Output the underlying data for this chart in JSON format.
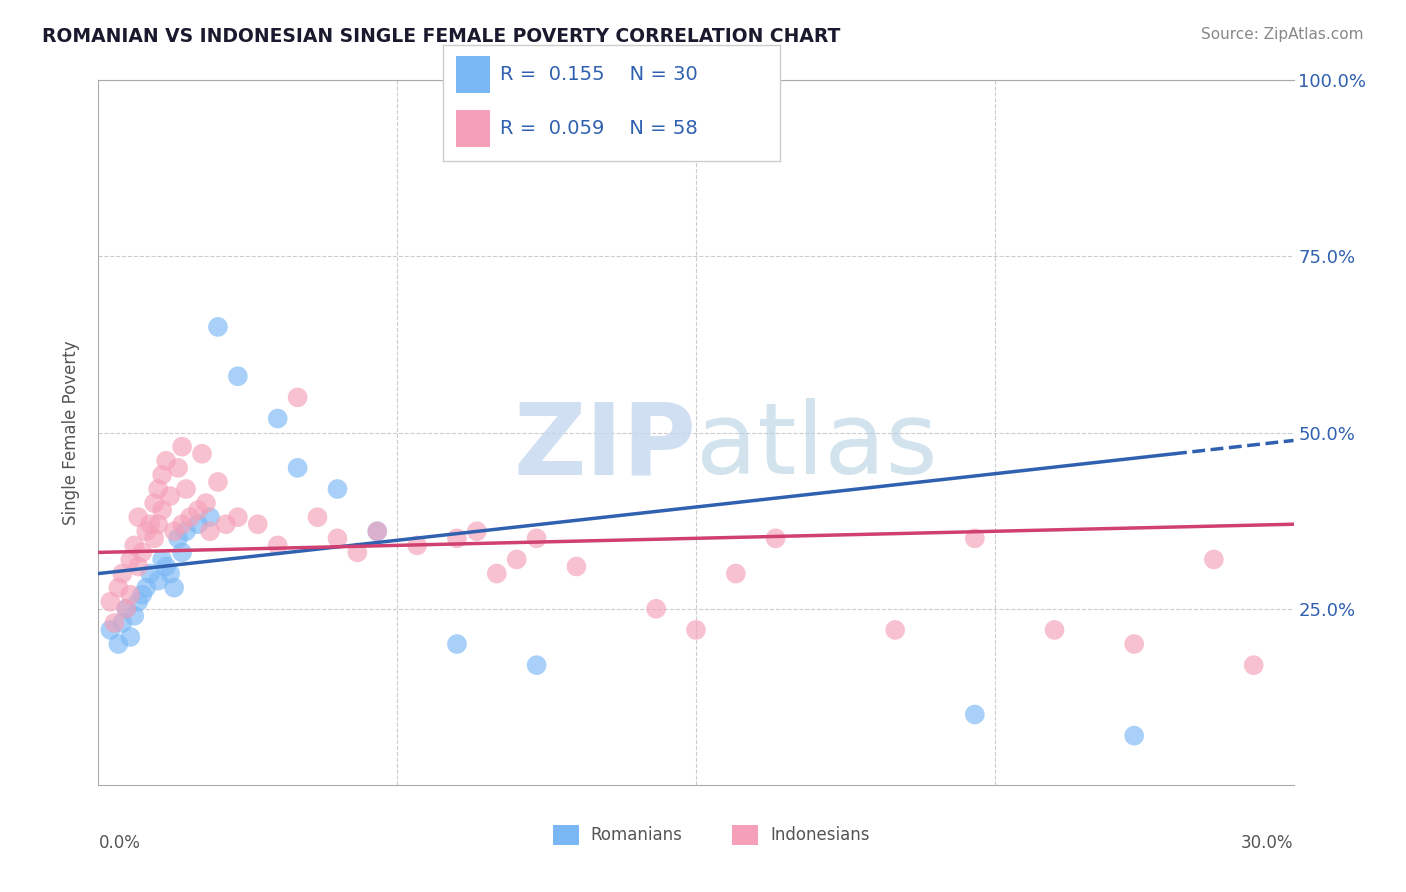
{
  "title": "ROMANIAN VS INDONESIAN SINGLE FEMALE POVERTY CORRELATION CHART",
  "source": "Source: ZipAtlas.com",
  "ylabel": "Single Female Poverty",
  "xlim": [
    0.0,
    30.0
  ],
  "ylim": [
    0.0,
    100.0
  ],
  "yticks": [
    25.0,
    50.0,
    75.0,
    100.0
  ],
  "xticks": [
    0.0,
    7.5,
    15.0,
    22.5,
    30.0
  ],
  "romanian_R": "0.155",
  "romanian_N": "30",
  "indonesian_R": "0.059",
  "indonesian_N": "58",
  "romanian_color": "#7ab8f5",
  "indonesian_color": "#f5a0b8",
  "trend_romanian_color": "#3060b0",
  "trend_indonesian_color": "#d04070",
  "legend_romanian_label": "Romanians",
  "legend_indonesian_label": "Indonesians",
  "romanians_x": [
    0.3,
    0.5,
    0.6,
    0.7,
    0.8,
    0.9,
    1.0,
    1.1,
    1.2,
    1.3,
    1.5,
    1.6,
    1.7,
    1.8,
    1.9,
    2.0,
    2.1,
    2.2,
    2.5,
    2.8,
    3.0,
    3.5,
    4.5,
    5.0,
    6.0,
    7.0,
    9.0,
    11.0,
    22.0,
    26.0
  ],
  "romanians_y": [
    22.0,
    20.0,
    23.0,
    25.0,
    21.0,
    24.0,
    26.0,
    27.0,
    28.0,
    30.0,
    29.0,
    32.0,
    31.0,
    30.0,
    28.0,
    35.0,
    33.0,
    36.0,
    37.0,
    38.0,
    65.0,
    58.0,
    52.0,
    45.0,
    42.0,
    36.0,
    20.0,
    17.0,
    10.0,
    7.0
  ],
  "indonesians_x": [
    0.3,
    0.4,
    0.5,
    0.6,
    0.7,
    0.8,
    0.8,
    0.9,
    1.0,
    1.0,
    1.1,
    1.2,
    1.3,
    1.4,
    1.4,
    1.5,
    1.5,
    1.6,
    1.6,
    1.7,
    1.8,
    1.9,
    2.0,
    2.1,
    2.1,
    2.2,
    2.3,
    2.5,
    2.6,
    2.7,
    2.8,
    3.0,
    3.2,
    3.5,
    4.0,
    4.5,
    5.0,
    5.5,
    6.0,
    6.5,
    7.0,
    8.0,
    9.0,
    9.5,
    10.0,
    10.5,
    11.0,
    12.0,
    14.0,
    15.0,
    16.0,
    17.0,
    20.0,
    22.0,
    24.0,
    26.0,
    28.0,
    29.0
  ],
  "indonesians_y": [
    26.0,
    23.0,
    28.0,
    30.0,
    25.0,
    32.0,
    27.0,
    34.0,
    31.0,
    38.0,
    33.0,
    36.0,
    37.0,
    40.0,
    35.0,
    42.0,
    37.0,
    44.0,
    39.0,
    46.0,
    41.0,
    36.0,
    45.0,
    48.0,
    37.0,
    42.0,
    38.0,
    39.0,
    47.0,
    40.0,
    36.0,
    43.0,
    37.0,
    38.0,
    37.0,
    34.0,
    55.0,
    38.0,
    35.0,
    33.0,
    36.0,
    34.0,
    35.0,
    36.0,
    30.0,
    32.0,
    35.0,
    31.0,
    25.0,
    22.0,
    30.0,
    35.0,
    22.0,
    35.0,
    22.0,
    20.0,
    32.0,
    17.0
  ],
  "rom_trend_x0": 0.0,
  "rom_trend_y0": 30.0,
  "rom_trend_x1": 27.0,
  "rom_trend_y1": 47.0,
  "ind_trend_x0": 0.0,
  "ind_trend_y0": 33.0,
  "ind_trend_x1": 30.0,
  "ind_trend_y1": 37.0
}
